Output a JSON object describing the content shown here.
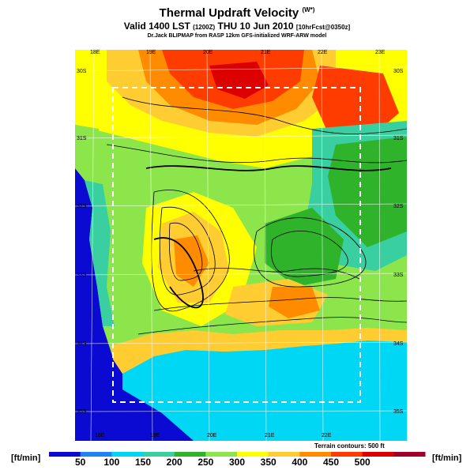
{
  "title": {
    "main": "Thermal Updraft Velocity",
    "main_units": "(W*)",
    "valid": "Valid 1400 LST",
    "valid_utc": "(1200Z)",
    "date": "THU 10 Jun 2010",
    "forecast": "[10hrFcst@0350z]",
    "credits": "Dr.Jack BLIPMAP from RASP 12km GFS-initialized WRF-ARW model"
  },
  "map": {
    "lon_labels_top": [
      "18E",
      "19E",
      "20E",
      "21E",
      "22E",
      "23E"
    ],
    "lon_labels_bottom": [
      "18E",
      "19E",
      "20E",
      "21E",
      "22E"
    ],
    "lat_labels": [
      "30S",
      "31S",
      "32S",
      "33S",
      "34S",
      "35S"
    ],
    "terrain_note": "Terrain contours: 500 ft"
  },
  "colorbar": {
    "unit_left": "[ft/min]",
    "unit_right": "[ft/min]",
    "ticks": [
      "50",
      "100",
      "150",
      "200",
      "250",
      "300",
      "350",
      "400",
      "450",
      "500"
    ],
    "colors": [
      "#0a0ad2",
      "#1e82f0",
      "#00d7f5",
      "#39cfa0",
      "#2fb32a",
      "#8ce64b",
      "#ffff00",
      "#ffcc32",
      "#ff8c00",
      "#ff3c00",
      "#dc0000",
      "#a0002a"
    ]
  }
}
